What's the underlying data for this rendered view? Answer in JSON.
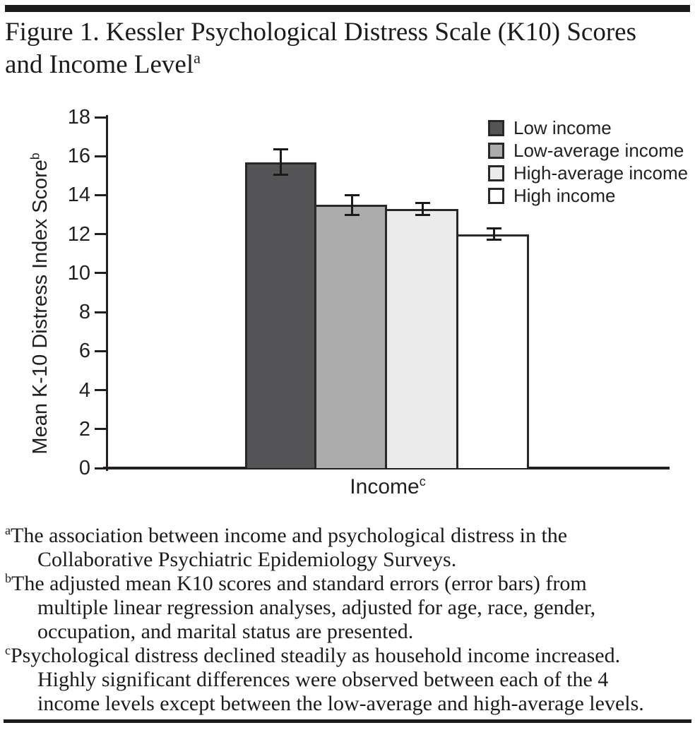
{
  "title": {
    "lines": [
      "Figure 1. Kessler Psychological Distress Scale (K10) Scores",
      "and Income Level"
    ],
    "sup": "a"
  },
  "chart_data": {
    "type": "bar",
    "categories": [
      "Low income",
      "Low-average income",
      "High-average income",
      "High income"
    ],
    "values": [
      15.7,
      13.5,
      13.3,
      12.0
    ],
    "errors": [
      0.65,
      0.5,
      0.3,
      0.3
    ],
    "bar_colors": [
      "#545456",
      "#ababab",
      "#ebebeb",
      "#ffffff"
    ],
    "bar_border_color": "#2a2728",
    "xlabel": {
      "text": "Income",
      "sup": "c"
    },
    "ylabel": {
      "text": "Mean K-10 Distress Index Score",
      "sup": "b"
    },
    "ylim": [
      0,
      18
    ],
    "ytick_step": 2,
    "grid": false,
    "legend_position": "top-right"
  },
  "footnotes": [
    {
      "sup": "a",
      "lines": [
        "The association between income and psychological distress in the",
        "Collaborative Psychiatric Epidemiology Surveys."
      ]
    },
    {
      "sup": "b",
      "lines": [
        "The adjusted mean K10 scores and standard errors (error bars) from",
        "multiple linear regression analyses, adjusted for age, race, gender,",
        "occupation, and marital status are presented."
      ]
    },
    {
      "sup": "c",
      "lines": [
        "Psychological distress declined steadily as household income increased.",
        "Highly significant differences were observed between each of the 4",
        "income levels except between the low-average and high-average levels."
      ]
    }
  ],
  "colors": {
    "text": "#231f20",
    "rule": "#1b1b1b",
    "axis": "#231f20"
  }
}
